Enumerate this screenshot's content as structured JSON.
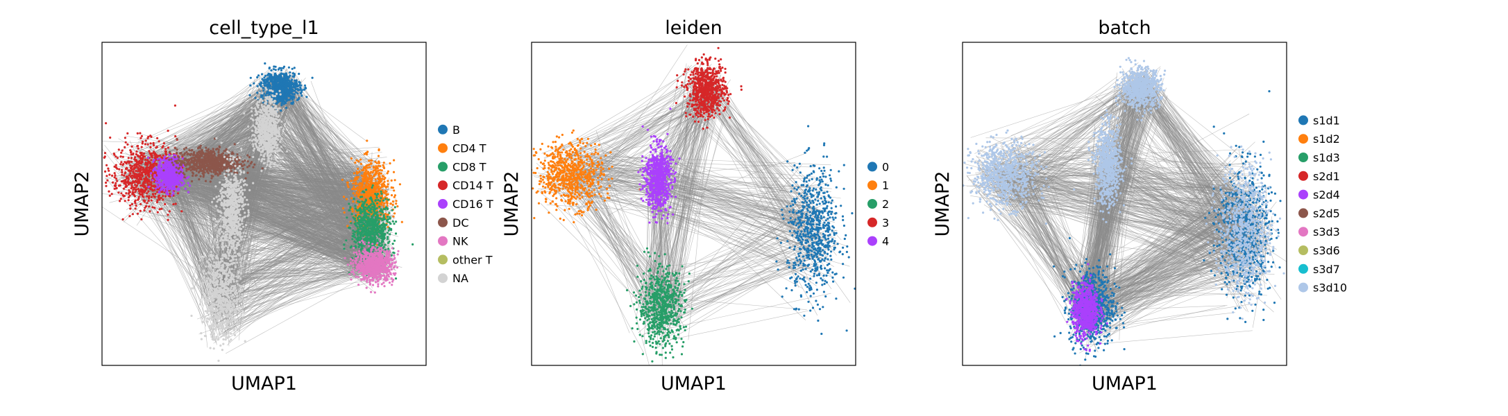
{
  "figure": {
    "panel_count": 3
  },
  "chart_data": [
    {
      "type": "scatter",
      "title": "cell_type_l1",
      "xlabel": "UMAP1",
      "ylabel": "UMAP2",
      "grid": false,
      "ticks": false,
      "legend_position": "right",
      "edges": "grey connectivity graph lines behind points",
      "legend": [
        {
          "label": "B",
          "color": "#1f77b4"
        },
        {
          "label": "CD4 T",
          "color": "#ff7f0e"
        },
        {
          "label": "CD8 T",
          "color": "#279e68"
        },
        {
          "label": "CD14 T",
          "color": "#d62728"
        },
        {
          "label": "CD16 T",
          "color": "#aa40fc"
        },
        {
          "label": "DC",
          "color": "#8c564b"
        },
        {
          "label": "NK",
          "color": "#e377c2"
        },
        {
          "label": "other T",
          "color": "#b5bd61"
        },
        {
          "label": "NA",
          "color": "#d3d3d3"
        }
      ],
      "clusters": [
        {
          "category": "B",
          "color": "#1f77b4",
          "x": 0.55,
          "y": 0.86,
          "sx": 0.03,
          "sy": 0.025
        },
        {
          "category": "CD14 T",
          "color": "#d62728",
          "x": 0.13,
          "y": 0.59,
          "sx": 0.05,
          "sy": 0.05
        },
        {
          "category": "CD16 T",
          "color": "#aa40fc",
          "x": 0.21,
          "y": 0.59,
          "sx": 0.02,
          "sy": 0.025
        },
        {
          "category": "DC",
          "color": "#8c564b",
          "x": 0.33,
          "y": 0.63,
          "sx": 0.05,
          "sy": 0.02
        },
        {
          "category": "CD4 T",
          "color": "#ff7f0e",
          "x": 0.83,
          "y": 0.53,
          "sx": 0.03,
          "sy": 0.05
        },
        {
          "category": "CD8 T",
          "color": "#279e68",
          "x": 0.83,
          "y": 0.42,
          "sx": 0.03,
          "sy": 0.05
        },
        {
          "category": "NK",
          "color": "#e377c2",
          "x": 0.84,
          "y": 0.31,
          "sx": 0.03,
          "sy": 0.025
        },
        {
          "category": "NA",
          "color": "#d3d3d3",
          "x": 0.37,
          "y": 0.22,
          "sx": 0.03,
          "sy": 0.07
        },
        {
          "category": "NA",
          "color": "#d3d3d3",
          "x": 0.4,
          "y": 0.48,
          "sx": 0.02,
          "sy": 0.07
        },
        {
          "category": "NA",
          "color": "#d3d3d3",
          "x": 0.51,
          "y": 0.73,
          "sx": 0.02,
          "sy": 0.05
        }
      ]
    },
    {
      "type": "scatter",
      "title": "leiden",
      "xlabel": "UMAP1",
      "ylabel": "UMAP2",
      "grid": false,
      "ticks": false,
      "legend_position": "right",
      "edges": "grey connectivity graph lines behind points",
      "legend": [
        {
          "label": "0",
          "color": "#1f77b4"
        },
        {
          "label": "1",
          "color": "#ff7f0e"
        },
        {
          "label": "2",
          "color": "#279e68"
        },
        {
          "label": "3",
          "color": "#d62728"
        },
        {
          "label": "4",
          "color": "#aa40fc"
        }
      ],
      "clusters": [
        {
          "category": "0",
          "color": "#1f77b4",
          "x": 0.87,
          "y": 0.41,
          "sx": 0.04,
          "sy": 0.1
        },
        {
          "category": "1",
          "color": "#ff7f0e",
          "x": 0.12,
          "y": 0.59,
          "sx": 0.05,
          "sy": 0.05
        },
        {
          "category": "2",
          "color": "#279e68",
          "x": 0.4,
          "y": 0.18,
          "sx": 0.035,
          "sy": 0.06
        },
        {
          "category": "3",
          "color": "#d62728",
          "x": 0.54,
          "y": 0.85,
          "sx": 0.03,
          "sy": 0.04
        },
        {
          "category": "4",
          "color": "#aa40fc",
          "x": 0.39,
          "y": 0.58,
          "sx": 0.02,
          "sy": 0.05
        }
      ]
    },
    {
      "type": "scatter",
      "title": "batch",
      "xlabel": "UMAP1",
      "ylabel": "UMAP2",
      "grid": false,
      "ticks": false,
      "legend_position": "right",
      "edges": "grey connectivity graph lines behind points",
      "legend": [
        {
          "label": "s1d1",
          "color": "#1f77b4"
        },
        {
          "label": "s1d2",
          "color": "#ff7f0e"
        },
        {
          "label": "s1d3",
          "color": "#279e68"
        },
        {
          "label": "s2d1",
          "color": "#d62728"
        },
        {
          "label": "s2d4",
          "color": "#aa40fc"
        },
        {
          "label": "s2d5",
          "color": "#8c564b"
        },
        {
          "label": "s3d3",
          "color": "#e377c2"
        },
        {
          "label": "s3d6",
          "color": "#b5bd61"
        },
        {
          "label": "s3d7",
          "color": "#17becf"
        },
        {
          "label": "s3d10",
          "color": "#aec7e8"
        }
      ],
      "clusters": [
        {
          "category": "s3d10",
          "color": "#aec7e8",
          "x": 0.13,
          "y": 0.59,
          "sx": 0.05,
          "sy": 0.05
        },
        {
          "category": "s3d10",
          "color": "#aec7e8",
          "x": 0.55,
          "y": 0.86,
          "sx": 0.03,
          "sy": 0.03
        },
        {
          "category": "s3d10",
          "color": "#aec7e8",
          "x": 0.45,
          "y": 0.62,
          "sx": 0.02,
          "sy": 0.06
        },
        {
          "category": "s1d1",
          "color": "#1f77b4",
          "x": 0.87,
          "y": 0.42,
          "sx": 0.04,
          "sy": 0.1
        },
        {
          "category": "s3d10",
          "color": "#aec7e8",
          "x": 0.87,
          "y": 0.42,
          "sx": 0.04,
          "sy": 0.1
        },
        {
          "category": "s1d1",
          "color": "#1f77b4",
          "x": 0.4,
          "y": 0.18,
          "sx": 0.035,
          "sy": 0.06
        },
        {
          "category": "s2d4",
          "color": "#aa40fc",
          "x": 0.38,
          "y": 0.17,
          "sx": 0.02,
          "sy": 0.04
        }
      ]
    }
  ]
}
